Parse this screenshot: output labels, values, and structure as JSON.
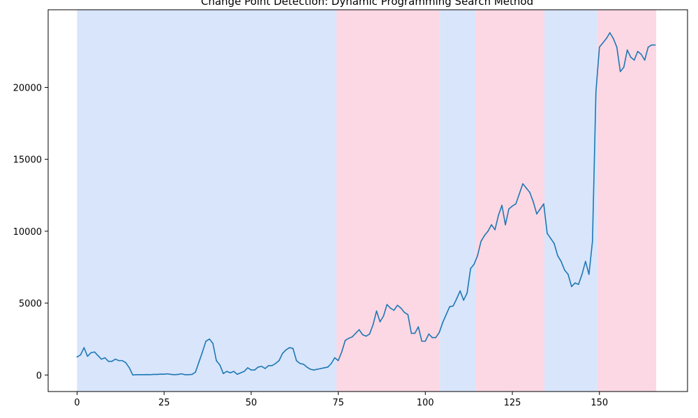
{
  "chart_data": {
    "type": "line",
    "title": "Change Point Detection: Dynamic Programming Search Method",
    "xlabel": "",
    "ylabel": "",
    "xlim": [
      -8.3,
      175.3
    ],
    "ylim": [
      -1150,
      25400
    ],
    "x_ticks": [
      0,
      25,
      50,
      75,
      100,
      125,
      150
    ],
    "y_ticks": [
      0,
      5000,
      10000,
      15000,
      20000
    ],
    "grid": false,
    "line_color": "#1f77b4",
    "segment_colors": {
      "blue": "#d8e5fb",
      "pink": "#fbd8e4"
    },
    "segments": [
      {
        "start": 0,
        "end": 74.5,
        "color": "blue"
      },
      {
        "start": 74.5,
        "end": 104.2,
        "color": "pink"
      },
      {
        "start": 104.2,
        "end": 114.4,
        "color": "blue"
      },
      {
        "start": 114.4,
        "end": 134.2,
        "color": "pink"
      },
      {
        "start": 134.2,
        "end": 149.4,
        "color": "blue"
      },
      {
        "start": 149.4,
        "end": 166.3,
        "color": "pink"
      }
    ],
    "series": [
      {
        "x": [
          0,
          1,
          2,
          3,
          4,
          5,
          6,
          7,
          8,
          9,
          10,
          11,
          12,
          13,
          14,
          15,
          16,
          17,
          18,
          19,
          20,
          21,
          22,
          23,
          24,
          25,
          26,
          27,
          28,
          29,
          30,
          31,
          32,
          33,
          34,
          35,
          36,
          37,
          38,
          39,
          40,
          41,
          42,
          43,
          44,
          45,
          46,
          47,
          48,
          49,
          50,
          51,
          52,
          53,
          54,
          55,
          56,
          57,
          58,
          59,
          60,
          61,
          62,
          63,
          64,
          65,
          66,
          67,
          68,
          69,
          70,
          71,
          72,
          73,
          74,
          75,
          76,
          77,
          78,
          79,
          80,
          81,
          82,
          83,
          84,
          85,
          86,
          87,
          88,
          89,
          90,
          91,
          92,
          93,
          94,
          95,
          96,
          97,
          98,
          99,
          100,
          101,
          102,
          103,
          104,
          105,
          106,
          107,
          108,
          109,
          110,
          111,
          112,
          113,
          114,
          115,
          116,
          117,
          118,
          119,
          120,
          121,
          122,
          123,
          124,
          125,
          126,
          127,
          128,
          129,
          130,
          131,
          132,
          133,
          134,
          135,
          136,
          137,
          138,
          139,
          140,
          141,
          142,
          143,
          144,
          145,
          146,
          147,
          148,
          149,
          150,
          151,
          152,
          153,
          154,
          155,
          156,
          157,
          158,
          159,
          160,
          161,
          162,
          163,
          164,
          165,
          166
        ],
        "y": [
          1250,
          1400,
          1900,
          1300,
          1550,
          1600,
          1350,
          1100,
          1200,
          950,
          950,
          1100,
          1000,
          1000,
          850,
          500,
          0,
          20,
          20,
          20,
          30,
          20,
          40,
          40,
          60,
          60,
          80,
          40,
          20,
          40,
          80,
          20,
          20,
          40,
          200,
          900,
          1600,
          2350,
          2500,
          2200,
          1000,
          700,
          100,
          250,
          150,
          250,
          50,
          150,
          250,
          500,
          350,
          350,
          550,
          600,
          450,
          650,
          650,
          800,
          1000,
          1500,
          1750,
          1900,
          1850,
          1000,
          800,
          750,
          550,
          400,
          350,
          400,
          450,
          500,
          550,
          800,
          1200,
          1000,
          1600,
          2400,
          2550,
          2650,
          2900,
          3150,
          2800,
          2700,
          2850,
          3500,
          4450,
          3700,
          4100,
          4900,
          4650,
          4500,
          4850,
          4650,
          4350,
          4200,
          2900,
          2900,
          3350,
          2350,
          2350,
          2850,
          2600,
          2600,
          2950,
          3650,
          4200,
          4750,
          4800,
          5300,
          5850,
          5200,
          5700,
          7400,
          7700,
          8300,
          9300,
          9700,
          10000,
          10450,
          10100,
          11100,
          11800,
          10450,
          11550,
          11750,
          11900,
          12600,
          13300,
          13000,
          12700,
          12050,
          11200,
          11550,
          11900,
          9850,
          9500,
          9150,
          8300,
          7900,
          7300,
          7000,
          6150,
          6400,
          6300,
          7000,
          7900,
          7000,
          9300,
          19700,
          22800,
          23100,
          23400,
          23800,
          23400,
          22800,
          21100,
          21400,
          22600,
          22100,
          21900,
          22500,
          22300,
          21900,
          22800,
          22950,
          22950
        ]
      }
    ]
  }
}
